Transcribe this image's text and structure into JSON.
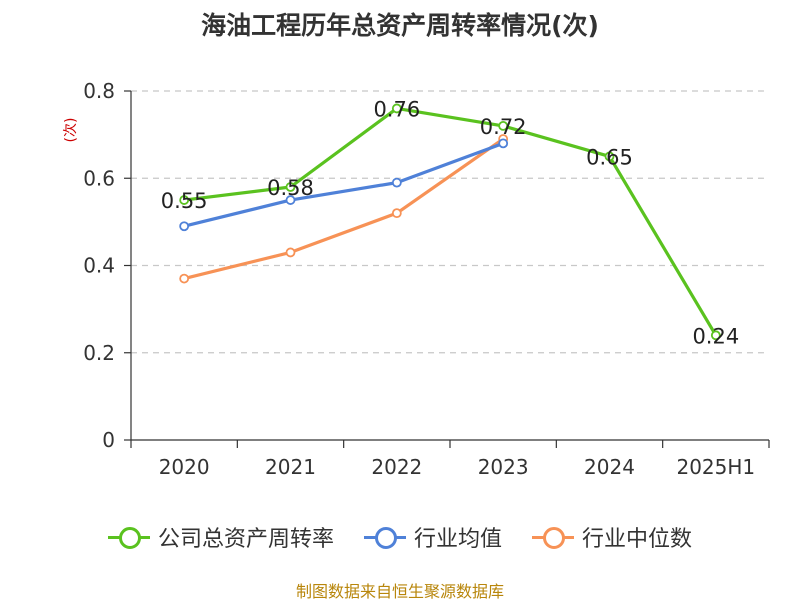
{
  "chart_data": {
    "type": "line",
    "title": "海油工程历年总资产周转率情况(次)",
    "ylabel": "(次)",
    "xlabel": "",
    "categories": [
      "2020",
      "2021",
      "2022",
      "2023",
      "2024",
      "2025H1"
    ],
    "ylim": [
      0,
      0.8
    ],
    "yticks": [
      "0",
      "0.2",
      "0.4",
      "0.6",
      "0.8"
    ],
    "grid": true,
    "legend_position": "bottom",
    "series": [
      {
        "name": "公司总资产周转率",
        "color": "#5ac21f",
        "values": [
          0.55,
          0.58,
          0.76,
          0.72,
          0.65,
          0.24
        ],
        "data_labels": [
          "0.55",
          "0.58",
          "0.76",
          "0.72",
          "0.65",
          "0.24"
        ]
      },
      {
        "name": "行业均值",
        "color": "#4f81d8",
        "values": [
          0.49,
          0.55,
          0.59,
          0.68,
          null,
          null
        ]
      },
      {
        "name": "行业中位数",
        "color": "#f79256",
        "values": [
          0.37,
          0.43,
          0.52,
          0.69,
          null,
          null
        ]
      }
    ]
  },
  "source": "制图数据来自恒生聚源数据库"
}
